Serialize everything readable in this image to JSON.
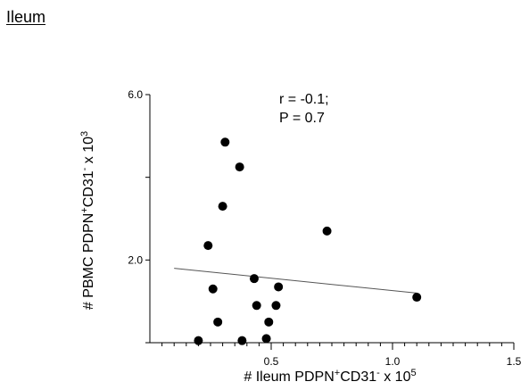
{
  "panel": {
    "title": "Ileum"
  },
  "stats": {
    "r_text": "r = -0.1;",
    "p_text": "P = 0.7"
  },
  "chart_data": {
    "type": "scatter",
    "title": "Ileum",
    "xlabel": {
      "parts": [
        "# Ileum PDPN",
        "+",
        "CD31",
        "-",
        "  x 10",
        "5"
      ],
      "text": "# Ileum PDPN+CD31-  x 10^5"
    },
    "ylabel": {
      "parts": [
        "# PBMC PDPN",
        "+",
        "CD31",
        "-",
        "  x 10",
        "3"
      ],
      "text": "# PBMC PDPN+CD31-  x 10^3"
    },
    "xlim": [
      0,
      1.5
    ],
    "ylim": [
      0,
      6.0
    ],
    "x_ticks_labeled": [
      {
        "value": 0.5,
        "label": "0.5"
      },
      {
        "value": 1.0,
        "label": "1.0"
      },
      {
        "value": 1.5,
        "label": "1.5"
      }
    ],
    "x_minor_step": 0.05,
    "y_ticks_labeled": [
      {
        "value": 2.0,
        "label": "2.0"
      },
      {
        "value": 6.0,
        "label": "6.0"
      }
    ],
    "y_ticks_unlabeled": [
      0.0,
      4.0
    ],
    "grid": false,
    "legend": "none",
    "points": [
      {
        "x": 0.2,
        "y": 0.05
      },
      {
        "x": 0.24,
        "y": 2.35
      },
      {
        "x": 0.26,
        "y": 1.3
      },
      {
        "x": 0.28,
        "y": 0.5
      },
      {
        "x": 0.3,
        "y": 3.3
      },
      {
        "x": 0.31,
        "y": 4.85
      },
      {
        "x": 0.37,
        "y": 4.25
      },
      {
        "x": 0.38,
        "y": 0.05
      },
      {
        "x": 0.43,
        "y": 1.55
      },
      {
        "x": 0.44,
        "y": 0.9
      },
      {
        "x": 0.48,
        "y": 0.1
      },
      {
        "x": 0.49,
        "y": 0.5
      },
      {
        "x": 0.52,
        "y": 0.9
      },
      {
        "x": 0.53,
        "y": 1.35
      },
      {
        "x": 0.73,
        "y": 2.7
      },
      {
        "x": 1.1,
        "y": 1.1
      }
    ],
    "trend_line": {
      "x": [
        0.1,
        1.1
      ],
      "y": [
        1.8,
        1.2
      ]
    },
    "colors": {
      "points": "#000000",
      "trend_line": "#555555",
      "axes": "#000000"
    }
  }
}
